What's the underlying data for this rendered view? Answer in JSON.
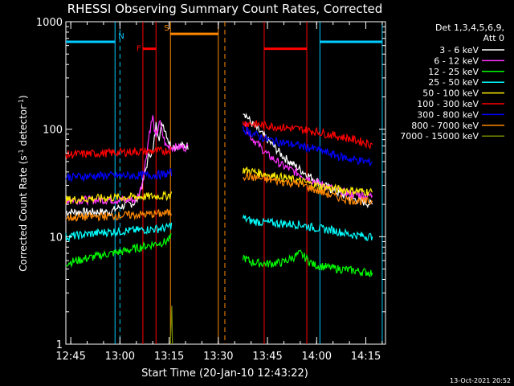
{
  "chart_data": {
    "type": "line",
    "title": "RHESSI Observing Summary Count Rates, Corrected",
    "xlabel": "Start Time (20-Jan-10 12:43:22)",
    "ylabel_main": "Corrected Count Rate (s",
    "ylabel_sup1": "-1",
    "ylabel_mid": " detector",
    "ylabel_sup2": "-1",
    "ylabel_end": ")",
    "y_scale": "log",
    "ylim": [
      1,
      1000
    ],
    "xlim_minutes": [
      -1.5,
      96
    ],
    "x_ticks": [
      {
        "m": 0,
        "label": "12:45"
      },
      {
        "m": 15,
        "label": "13:00"
      },
      {
        "m": 30,
        "label": "13:15"
      },
      {
        "m": 45,
        "label": "13:30"
      },
      {
        "m": 60,
        "label": "13:45"
      },
      {
        "m": 75,
        "label": "14:00"
      },
      {
        "m": 90,
        "label": "14:15"
      }
    ],
    "y_ticks": [
      {
        "v": 1,
        "label": "1"
      },
      {
        "v": 10,
        "label": "10"
      },
      {
        "v": 100,
        "label": "100"
      },
      {
        "v": 1000,
        "label": "1000"
      }
    ],
    "legend_header": [
      "Det 1,3,4,5,6,9,",
      "Att 0"
    ],
    "legend_position": "right",
    "series": [
      {
        "name": "3 - 6 keV",
        "color": "#ffffff",
        "points": [
          [
            -1.5,
            17
          ],
          [
            12,
            17
          ],
          [
            15,
            19
          ],
          [
            20,
            21
          ],
          [
            22,
            32
          ],
          [
            24,
            60
          ],
          [
            25,
            60
          ],
          [
            26,
            110
          ],
          [
            27,
            85
          ],
          [
            28,
            115
          ],
          [
            29,
            95
          ],
          [
            30,
            75
          ],
          [
            31,
            70
          ],
          [
            36,
            70
          ],
          [
            52.5,
            150
          ],
          [
            55,
            115
          ],
          [
            60,
            80
          ],
          [
            65,
            55
          ],
          [
            70,
            42
          ],
          [
            75,
            33
          ],
          [
            80,
            27
          ],
          [
            85,
            23
          ],
          [
            92,
            20
          ]
        ]
      },
      {
        "name": "6 - 12 keV",
        "color": "#ff33ff",
        "points": [
          [
            -1.5,
            22
          ],
          [
            15,
            22
          ],
          [
            20,
            22
          ],
          [
            21,
            26
          ],
          [
            22,
            34
          ],
          [
            23,
            55
          ],
          [
            24,
            95
          ],
          [
            25,
            130
          ],
          [
            26,
            80
          ],
          [
            27,
            120
          ],
          [
            28,
            90
          ],
          [
            29,
            70
          ],
          [
            31,
            68
          ],
          [
            36,
            68
          ],
          [
            52.5,
            125
          ],
          [
            55,
            85
          ],
          [
            60,
            58
          ],
          [
            65,
            45
          ],
          [
            70,
            38
          ],
          [
            75,
            32
          ],
          [
            80,
            28
          ],
          [
            85,
            25
          ],
          [
            92,
            24
          ]
        ]
      },
      {
        "name": "12 - 25 keV",
        "color": "#00ff00",
        "points": [
          [
            -1.5,
            5.7
          ],
          [
            5,
            6.3
          ],
          [
            10,
            6.8
          ],
          [
            15,
            7.2
          ],
          [
            20,
            7.8
          ],
          [
            25,
            8.5
          ],
          [
            29,
            9
          ],
          [
            31,
            10
          ],
          [
            52.5,
            6.5
          ],
          [
            55,
            5.8
          ],
          [
            60,
            5.6
          ],
          [
            65,
            5.8
          ],
          [
            70,
            7
          ],
          [
            74,
            5.5
          ],
          [
            80,
            5.1
          ],
          [
            85,
            4.9
          ],
          [
            92,
            4.6
          ]
        ]
      },
      {
        "name": "25 - 50 keV",
        "color": "#00ffff",
        "points": [
          [
            -1.5,
            10
          ],
          [
            10,
            11
          ],
          [
            20,
            11.5
          ],
          [
            29,
            12
          ],
          [
            31,
            13
          ],
          [
            52.5,
            15
          ],
          [
            55,
            14
          ],
          [
            60,
            13.5
          ],
          [
            70,
            13
          ],
          [
            75,
            12
          ],
          [
            80,
            11.5
          ],
          [
            85,
            10.5
          ],
          [
            92,
            10
          ]
        ]
      },
      {
        "name": "50 - 100 keV",
        "color": "#ffee00",
        "points": [
          [
            -1.5,
            22
          ],
          [
            10,
            23
          ],
          [
            20,
            23.5
          ],
          [
            29,
            24
          ],
          [
            31,
            25
          ],
          [
            52.5,
            42
          ],
          [
            60,
            38
          ],
          [
            70,
            33
          ],
          [
            75,
            30
          ],
          [
            80,
            28
          ],
          [
            85,
            27
          ],
          [
            92,
            26
          ]
        ]
      },
      {
        "name": "100 - 300 keV",
        "color": "#ff0000",
        "points": [
          [
            -1.5,
            58
          ],
          [
            10,
            60
          ],
          [
            20,
            62
          ],
          [
            29,
            63
          ],
          [
            31,
            66
          ],
          [
            52.5,
            115
          ],
          [
            60,
            108
          ],
          [
            70,
            100
          ],
          [
            75,
            95
          ],
          [
            80,
            88
          ],
          [
            85,
            82
          ],
          [
            92,
            72
          ]
        ]
      },
      {
        "name": "300 - 800 keV",
        "color": "#0000ff",
        "points": [
          [
            -1.5,
            36
          ],
          [
            10,
            37
          ],
          [
            20,
            37
          ],
          [
            29,
            38
          ],
          [
            31,
            40
          ],
          [
            52.5,
            100
          ],
          [
            60,
            80
          ],
          [
            70,
            70
          ],
          [
            75,
            65
          ],
          [
            80,
            58
          ],
          [
            85,
            53
          ],
          [
            92,
            49
          ]
        ]
      },
      {
        "name": "800 - 7000 keV",
        "color": "#ff8800",
        "points": [
          [
            -1.5,
            15
          ],
          [
            10,
            15.5
          ],
          [
            20,
            16
          ],
          [
            29,
            16.5
          ],
          [
            31,
            17
          ],
          [
            52.5,
            37
          ],
          [
            60,
            34
          ],
          [
            70,
            31
          ],
          [
            75,
            27
          ],
          [
            80,
            24
          ],
          [
            85,
            22
          ],
          [
            92,
            21
          ]
        ]
      },
      {
        "name": "7000 - 15000 keV",
        "color": "#778800",
        "points": [
          [
            30.4,
            1
          ],
          [
            30.6,
            1.6
          ],
          [
            30.8,
            2.5
          ],
          [
            31,
            1
          ]
        ]
      }
    ],
    "flags": [
      {
        "label": "N",
        "color": "#00ccff",
        "segments": [
          [
            -1.5,
            13.5
          ],
          [
            76,
            95
          ]
        ],
        "level": 650,
        "markers": [
          15
        ]
      },
      {
        "label": "F",
        "color": "#ff0000",
        "segments": [
          [
            22,
            26
          ],
          [
            59,
            72
          ]
        ],
        "level": 560,
        "markers": []
      },
      {
        "label": "S",
        "color": "#ff8800",
        "segments": [
          [
            30.4,
            45
          ]
        ],
        "level": 770,
        "markers": [
          47
        ]
      }
    ],
    "footer_date": "13-Oct-2021 20:52"
  }
}
